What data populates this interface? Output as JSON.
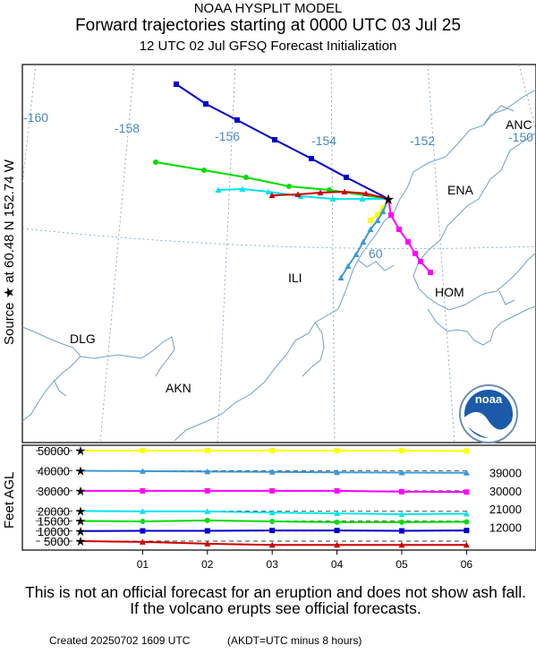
{
  "header": {
    "title": "NOAA HYSPLIT MODEL",
    "subtitle": "Forward trajectories starting at 0000 UTC 03 Jul 25",
    "run_info": "12 UTC 02 Jul    GFSQ  Forecast Initialization"
  },
  "source_label": "Source ★ at   60.48 N  152.74 W",
  "logo_text": "noaa",
  "notice": "This is not an official forecast for an eruption and does not show ash fall. If the volcano erupts see official forecasts.",
  "footer": {
    "created": "Created 20250702 1609 UTC",
    "timezone": "(AKDT=UTC minus 8 hours)"
  },
  "colors": {
    "blue": "#0000cc",
    "green": "#00dd00",
    "cyan": "#00e5ee",
    "red": "#cc0000",
    "yellow": "#ffff00",
    "magenta": "#ff00ff",
    "steelblue": "#3a9ad6",
    "coast": "#6fa0c8",
    "grid": "#6fa0c8"
  },
  "chart_data": [
    {
      "type": "map",
      "lon_labels": [
        "-160",
        "-158",
        "-156",
        "-154",
        "-152",
        "-150"
      ],
      "lat_labels": [
        "60"
      ],
      "place_labels": [
        "ANC",
        "ENA",
        "ILI",
        "HOM",
        "DLG",
        "AKN"
      ],
      "source": {
        "lat": 60.48,
        "lon": -152.74
      },
      "trajectories_visible": 7
    },
    {
      "type": "line",
      "ylabel": "Feet AGL",
      "x": [
        "01",
        "02",
        "03",
        "04",
        "05",
        "06"
      ],
      "y_tick_labels_left": [
        "50000",
        "40000",
        "30000",
        "20000",
        "15000",
        "10000",
        "5000"
      ],
      "y_tick_labels_right": [
        "39000",
        "30000",
        "21000",
        "12000"
      ],
      "series": [
        {
          "color": "yellow",
          "start": 50000,
          "values": [
            50000,
            50000,
            50000,
            50000,
            50000,
            49800
          ]
        },
        {
          "color": "steelblue",
          "start": 40000,
          "values": [
            39800,
            39600,
            39400,
            39200,
            39100,
            39000
          ]
        },
        {
          "color": "magenta",
          "start": 30000,
          "values": [
            30000,
            30000,
            30000,
            30000,
            29600,
            29400
          ]
        },
        {
          "color": "cyan",
          "start": 20000,
          "values": [
            19800,
            19800,
            19200,
            18800,
            18400,
            18600
          ]
        },
        {
          "color": "green",
          "start": 15000,
          "values": [
            14800,
            15300,
            14800,
            14400,
            14400,
            14600
          ]
        },
        {
          "color": "blue",
          "start": 10000,
          "values": [
            10100,
            10100,
            10300,
            10300,
            10100,
            10300
          ]
        },
        {
          "color": "red",
          "start": 5000,
          "values": [
            4600,
            3700,
            3100,
            3100,
            3100,
            3100
          ]
        }
      ]
    }
  ]
}
